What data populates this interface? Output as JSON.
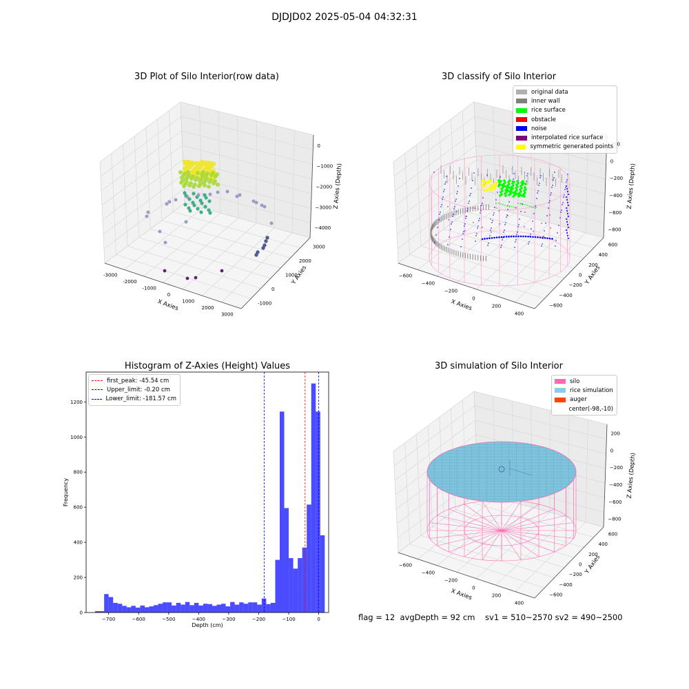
{
  "figure": {
    "suptitle": "DJDJD02 2025-05-04 04:32:31"
  },
  "status_line": "flag = 12  avgDepth = 92 cm    sv1 = 510~2570 sv2 = 490~2500",
  "chart_data": [
    {
      "id": "raw",
      "type": "scatter",
      "title": "3D Plot of Silo Interior(row data)",
      "xlabel": "X Axies",
      "ylabel": "Y Axies",
      "zlabel": "Z Axies (Depth)",
      "x_ticks": [
        "-3000",
        "-2000",
        "-1000",
        "0",
        "1000",
        "2000",
        "3000"
      ],
      "y_ticks": [
        "-1000",
        "0",
        "1000",
        "2000",
        "3000"
      ],
      "z_ticks": [
        "0",
        "−1000",
        "−2000",
        "−3000",
        "−4000"
      ],
      "grid": true
    },
    {
      "id": "classify",
      "type": "scatter",
      "title": "3D classify of Silo Interior",
      "xlabel": "X Axies",
      "ylabel": "Y Axies",
      "zlabel": "Z Axies (Depth)",
      "x_ticks": [
        "−600",
        "−400",
        "−200",
        "0",
        "200",
        "400"
      ],
      "y_ticks": [
        "−600",
        "−400",
        "−200",
        "0",
        "200",
        "400",
        "600"
      ],
      "z_ticks": [
        "200",
        "0",
        "−200",
        "−400",
        "−600",
        "−800"
      ],
      "grid": true,
      "legend_position": "upper right",
      "legend": [
        {
          "label": "original data",
          "color": "#b0b0b0"
        },
        {
          "label": "inner wall",
          "color": "#808080"
        },
        {
          "label": "rice surface",
          "color": "#00ff00"
        },
        {
          "label": "obstacle",
          "color": "#ff0000"
        },
        {
          "label": "noise",
          "color": "#0000ff"
        },
        {
          "label": "interpolated rice surface",
          "color": "#800080"
        },
        {
          "label": "symmetric generated points",
          "color": "#ffff00"
        }
      ]
    },
    {
      "id": "hist",
      "type": "bar",
      "title": "Histogram of Z-Axies (Height) Values",
      "xlabel": "Depth (cm)",
      "ylabel": "Frequency",
      "xlim": [
        -775,
        33
      ],
      "ylim": [
        0,
        1370
      ],
      "x_ticks": [
        -700,
        -600,
        -500,
        -400,
        -300,
        -200,
        -100,
        0
      ],
      "x_tick_labels": [
        "−700",
        "−600",
        "−500",
        "−400",
        "−300",
        "−200",
        "−100",
        "0"
      ],
      "y_ticks": [
        0,
        200,
        400,
        600,
        800,
        1000,
        1200
      ],
      "y_tick_labels": [
        "0",
        "200",
        "400",
        "600",
        "800",
        "1000",
        "1200"
      ],
      "bar_color": "#0000ff",
      "bins_start": -745,
      "bin_width": 15,
      "counts": [
        8,
        8,
        105,
        88,
        55,
        50,
        38,
        30,
        38,
        28,
        40,
        30,
        35,
        42,
        50,
        58,
        58,
        40,
        55,
        45,
        60,
        42,
        55,
        40,
        50,
        48,
        38,
        45,
        50,
        35,
        60,
        45,
        58,
        50,
        58,
        58,
        45,
        80,
        48,
        55,
        300,
        1145,
        595,
        310,
        250,
        310,
        370,
        615,
        1305,
        1145,
        440
      ],
      "lines": [
        {
          "label": "first_peak: -45.54 cm",
          "x": -45.54,
          "color": "#ff0000"
        },
        {
          "label": "Upper_limit: -0.20 cm",
          "x": -0.2,
          "color": "#0000ff"
        },
        {
          "label": "Lower_limit: -181.57 cm",
          "x": -181.57,
          "color": "#0000ff"
        }
      ],
      "legend_position": "upper left"
    },
    {
      "id": "simulation",
      "type": "scatter",
      "title": "3D simulation of Silo Interior",
      "xlabel": "X Axies",
      "ylabel": "Y Axies",
      "zlabel": "Z Axies (Depth)",
      "x_ticks": [
        "−600",
        "−400",
        "−200",
        "0",
        "200",
        "400"
      ],
      "y_ticks": [
        "−600",
        "−400",
        "−200",
        "0",
        "200",
        "400",
        "600"
      ],
      "z_ticks": [
        "200",
        "0",
        "−200",
        "−400",
        "−600",
        "−800"
      ],
      "grid": true,
      "legend_position": "upper right",
      "legend": [
        {
          "label": "silo",
          "color": "#ff69b4"
        },
        {
          "label": "rice simulation",
          "color": "#87ceeb"
        },
        {
          "label": "auger",
          "color": "#ff4500"
        },
        {
          "label": "center(-98,-10)",
          "color": ""
        }
      ]
    }
  ]
}
